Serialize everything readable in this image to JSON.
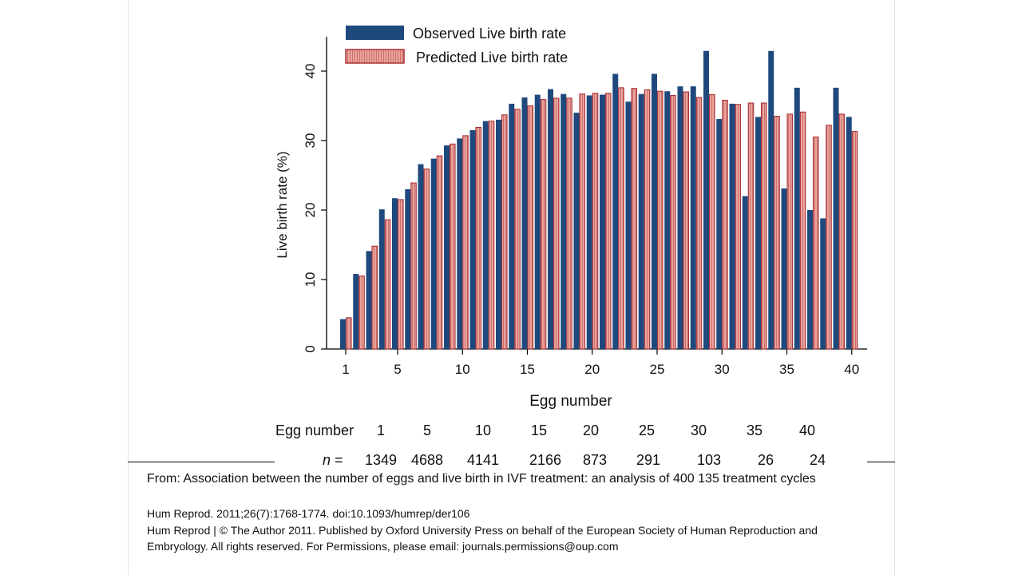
{
  "chart_data": {
    "type": "bar",
    "legend_position": "top-left",
    "ylabel": "Live birth rate (%)",
    "xlabel": "Egg number",
    "ylim": [
      0,
      45
    ],
    "yticks": [
      0,
      10,
      20,
      30,
      40
    ],
    "xticks": [
      1,
      5,
      10,
      15,
      20,
      25,
      30,
      35,
      40
    ],
    "x": [
      1,
      2,
      3,
      4,
      5,
      6,
      7,
      8,
      9,
      10,
      11,
      12,
      13,
      14,
      15,
      16,
      17,
      18,
      19,
      20,
      21,
      22,
      23,
      24,
      25,
      26,
      27,
      28,
      29,
      30,
      31,
      32,
      33,
      34,
      35,
      36,
      37,
      38,
      39,
      40
    ],
    "series": [
      {
        "name": "Observed Live birth rate",
        "color": "#1f497d",
        "values": [
          4.3,
          10.8,
          14.1,
          20.1,
          21.7,
          23.0,
          26.6,
          27.4,
          29.3,
          30.3,
          31.5,
          32.8,
          33.0,
          35.3,
          36.2,
          36.6,
          37.4,
          36.7,
          34.0,
          36.5,
          36.6,
          39.6,
          35.6,
          36.7,
          39.6,
          37.1,
          37.8,
          37.8,
          42.9,
          33.1,
          35.3,
          22.0,
          33.4,
          42.9,
          23.1,
          37.6,
          20.0,
          18.8,
          37.6,
          33.4
        ],
        "label_lines": []
      },
      {
        "name": "Predicted Live birth rate",
        "color": "#e8a09a",
        "edge": "#a8323a",
        "values": [
          4.5,
          10.5,
          14.8,
          18.6,
          21.5,
          23.9,
          25.9,
          27.8,
          29.5,
          30.7,
          31.9,
          32.8,
          33.7,
          34.5,
          35.0,
          35.9,
          36.1,
          36.1,
          36.7,
          36.8,
          36.8,
          37.6,
          37.5,
          37.3,
          37.1,
          36.5,
          37.0,
          36.2,
          36.6,
          35.8,
          35.2,
          35.4,
          35.4,
          33.5,
          33.8,
          34.1,
          30.5,
          32.2,
          33.8,
          31.3
        ],
        "label_lines": []
      }
    ],
    "n_table": {
      "row_label_egg": "Egg number",
      "row_label_n": "n =",
      "eggs": [
        "1",
        "5",
        "10",
        "15",
        "20",
        "25",
        "30",
        "35",
        "40"
      ],
      "counts": [
        "1349",
        "4688",
        "4141",
        "2166",
        "873",
        "291",
        "103",
        "26",
        "24"
      ]
    }
  },
  "caption": {
    "title": "From: Association between the number of eggs and live birth in IVF treatment: an analysis of 400 135 treatment cycles",
    "citation": "Hum Reprod. 2011;26(7):1768-1774. doi:10.1093/humrep/der106",
    "copyright": "Hum Reprod | © The Author 2011. Published by Oxford University Press on behalf of the European Society of Human Reproduction and Embryology. All rights reserved. For Permissions, please email: journals.permissions@oup.com"
  }
}
